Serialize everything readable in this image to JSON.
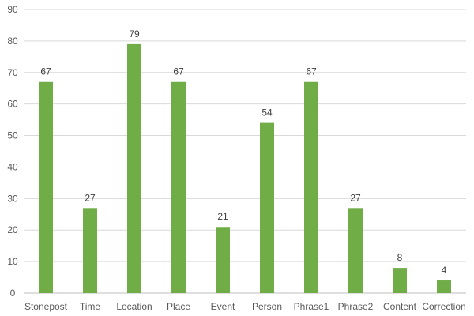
{
  "chart_data": {
    "type": "bar",
    "title": "",
    "xlabel": "",
    "ylabel": "",
    "categories": [
      "Stonepost",
      "Time",
      "Location",
      "Place",
      "Event",
      "Person",
      "Phrase1",
      "Phrase2",
      "Content",
      "Correction"
    ],
    "values": [
      67,
      27,
      79,
      67,
      21,
      54,
      67,
      27,
      8,
      4
    ],
    "ylim": [
      0,
      90
    ],
    "yticks": [
      0,
      10,
      20,
      30,
      40,
      50,
      60,
      70,
      80,
      90
    ],
    "grid": "horizontal",
    "legend": "none",
    "data_labels": true,
    "colors": {
      "bar": "#70ad47",
      "grid": "#d9d9d9",
      "axis": "#bfbfbf",
      "text": "#595959"
    }
  }
}
